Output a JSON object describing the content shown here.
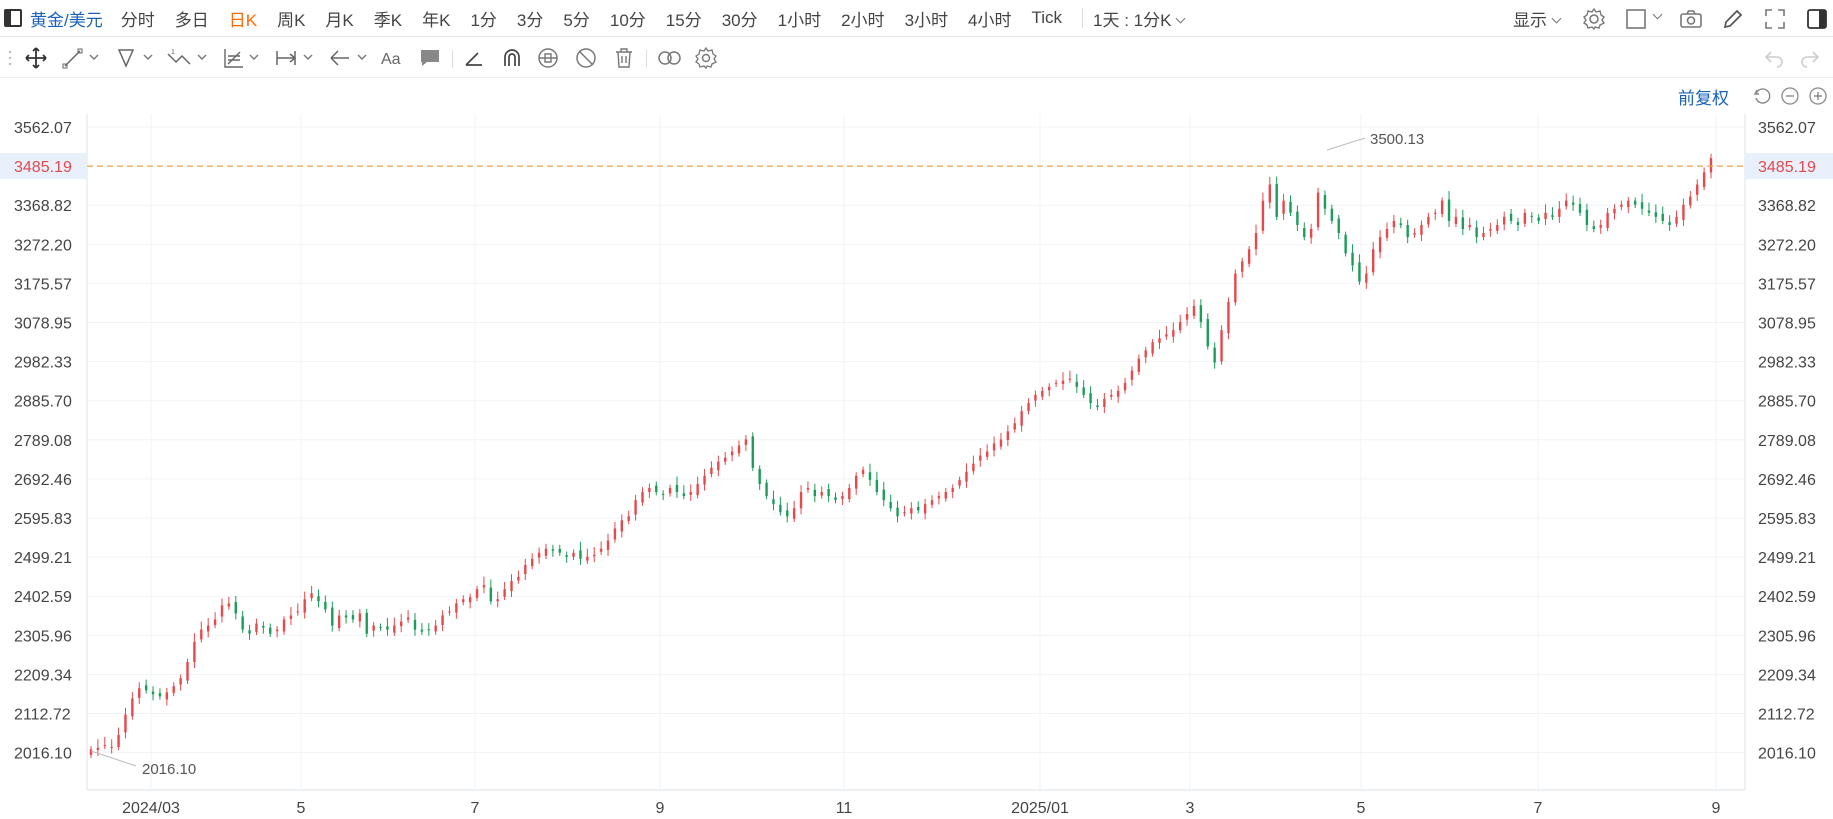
{
  "toolbar": {
    "symbol": "黄金/美元",
    "periods": [
      "分时",
      "多日",
      "日K",
      "周K",
      "月K",
      "季K",
      "年K",
      "1分",
      "3分",
      "5分",
      "10分",
      "15分",
      "30分",
      "1小时",
      "2小时",
      "3小时",
      "4小时",
      "Tick"
    ],
    "active_period": "日K",
    "range": "1天 : 1分K",
    "display_label": "显示"
  },
  "adjustment_label": "前复权",
  "colors": {
    "up": "#e5484d",
    "down": "#1a9c5a",
    "price_line": "#f0a04b",
    "accent": "#1a62b8",
    "active_period": "#ff6a00"
  },
  "chart_data": {
    "type": "candlestick",
    "y_ticks": [
      "3562.07",
      "3485.19",
      "3368.82",
      "3272.20",
      "3175.57",
      "3078.95",
      "2982.33",
      "2885.70",
      "2789.08",
      "2692.46",
      "2595.83",
      "2499.21",
      "2402.59",
      "2305.96",
      "2209.34",
      "2112.72",
      "2016.10"
    ],
    "ylim": [
      2016.1,
      3562.07
    ],
    "x_ticks": [
      "2024/03",
      "5",
      "7",
      "9",
      "11",
      "2025/01",
      "3",
      "5",
      "7",
      "9"
    ],
    "current_price": "3485.19",
    "high_label": "3500.13",
    "low_label": "2016.10",
    "trend_closes": [
      2024,
      2028,
      2035,
      2030,
      2060,
      2110,
      2150,
      2175,
      2170,
      2160,
      2155,
      2165,
      2180,
      2200,
      2240,
      2290,
      2320,
      2330,
      2345,
      2380,
      2385,
      2360,
      2320,
      2310,
      2335,
      2325,
      2310,
      2320,
      2345,
      2355,
      2365,
      2395,
      2410,
      2390,
      2370,
      2330,
      2355,
      2350,
      2345,
      2360,
      2310,
      2330,
      2325,
      2320,
      2330,
      2340,
      2350,
      2320,
      2315,
      2320,
      2330,
      2355,
      2365,
      2385,
      2395,
      2400,
      2420,
      2430,
      2390,
      2395,
      2420,
      2440,
      2450,
      2480,
      2495,
      2510,
      2520,
      2515,
      2510,
      2500,
      2510,
      2495,
      2500,
      2505,
      2520,
      2540,
      2570,
      2590,
      2600,
      2640,
      2660,
      2670,
      2660,
      2655,
      2670,
      2660,
      2650,
      2660,
      2680,
      2700,
      2720,
      2735,
      2745,
      2760,
      2775,
      2790,
      2720,
      2680,
      2650,
      2630,
      2610,
      2600,
      2620,
      2660,
      2670,
      2650,
      2660,
      2650,
      2640,
      2650,
      2670,
      2700,
      2715,
      2690,
      2660,
      2640,
      2620,
      2600,
      2610,
      2620,
      2615,
      2630,
      2640,
      2650,
      2660,
      2670,
      2690,
      2710,
      2730,
      2750,
      2760,
      2780,
      2790,
      2810,
      2830,
      2860,
      2880,
      2900,
      2910,
      2920,
      2930,
      2935,
      2940,
      2920,
      2900,
      2880,
      2870,
      2890,
      2900,
      2910,
      2930,
      2960,
      2990,
      3010,
      3030,
      3040,
      3050,
      3060,
      3080,
      3100,
      3120,
      3080,
      3020,
      2980,
      3060,
      3130,
      3200,
      3230,
      3260,
      3300,
      3380,
      3420,
      3340,
      3380,
      3350,
      3320,
      3290,
      3310,
      3400,
      3360,
      3330,
      3300,
      3250,
      3220,
      3180,
      3200,
      3260,
      3290,
      3310,
      3330,
      3320,
      3290,
      3300,
      3320,
      3340,
      3350,
      3380,
      3330,
      3340,
      3310,
      3320,
      3290,
      3300,
      3310,
      3320,
      3340,
      3330,
      3320,
      3350,
      3340,
      3330,
      3350,
      3340,
      3360,
      3380,
      3370,
      3350,
      3320,
      3310,
      3320,
      3350,
      3360,
      3370,
      3380,
      3370,
      3360,
      3350,
      3340,
      3330,
      3320,
      3340,
      3370,
      3390,
      3420,
      3450,
      3485
    ]
  }
}
